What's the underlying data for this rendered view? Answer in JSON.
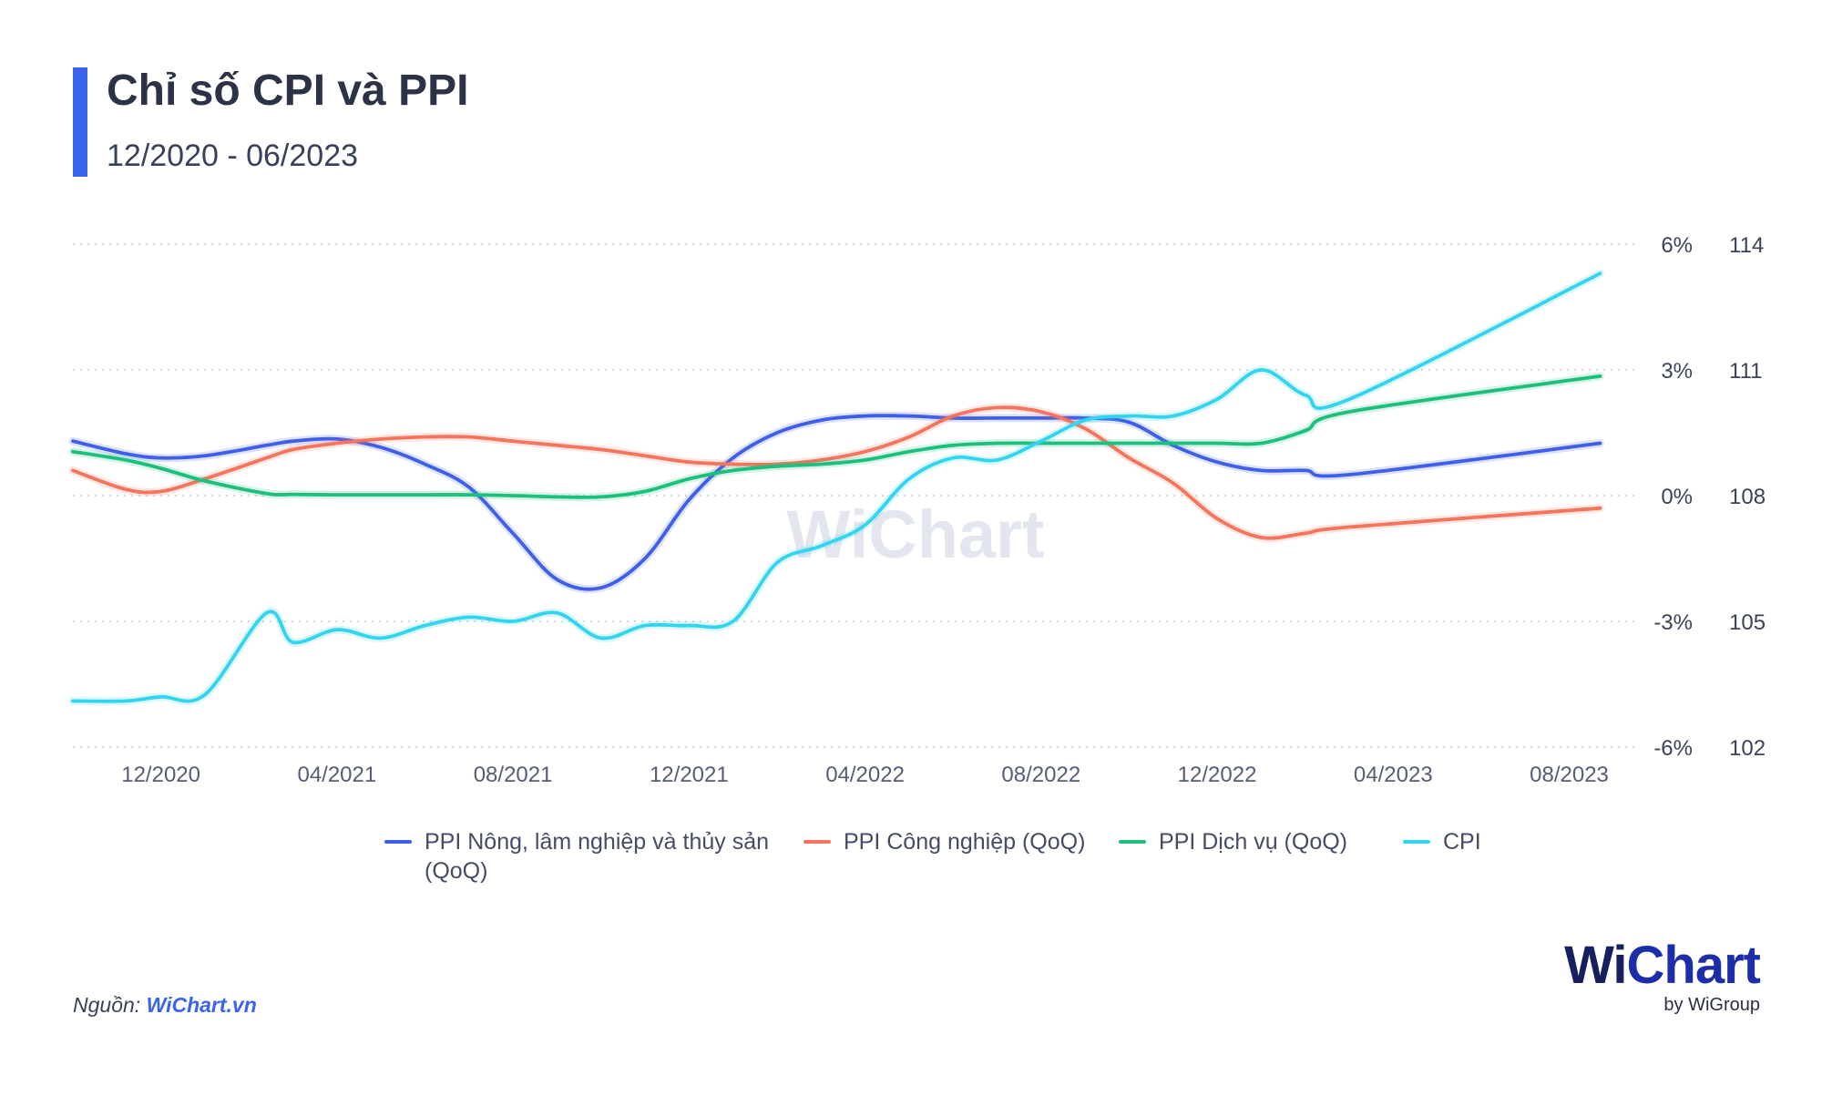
{
  "title": "Chỉ số CPI và PPI",
  "subtitle": "12/2020 - 06/2023",
  "source_label": "Nguồn:",
  "source_name": "WiChart.vn",
  "watermark": "WiChart",
  "brand": {
    "name_prefix": "Wi",
    "name_suffix": "Chart",
    "by": "by WiGroup"
  },
  "colors": {
    "accent": "#3a63f0",
    "agri": "#3f5fe8",
    "industry": "#f4745c",
    "service": "#1dbf7c",
    "cpi": "#33d4ee"
  },
  "chart_data": {
    "type": "line",
    "title": "Chỉ số CPI và PPI",
    "x_labels": [
      "12/2020",
      "04/2021",
      "08/2021",
      "12/2021",
      "04/2022",
      "08/2022",
      "12/2022",
      "04/2023",
      "08/2023"
    ],
    "ylim_left": [
      -6,
      6
    ],
    "yticks_left": [
      "6%",
      "3%",
      "0%",
      "-3%",
      "-6%"
    ],
    "ylim_right": [
      102,
      114
    ],
    "yticks_right": [
      "114",
      "111",
      "108",
      "105",
      "102"
    ],
    "series": [
      {
        "name": "PPI Nông, lâm nghiệp và thủy sản (QoQ)",
        "axis": "left",
        "color": "#3f5fe8",
        "x": [
          10,
          11.2,
          12,
          13,
          14.4,
          15,
          16,
          17,
          18,
          19,
          20,
          21,
          22,
          23,
          24,
          25,
          26,
          27,
          28,
          29,
          30,
          31,
          32,
          33,
          34,
          35,
          36,
          37,
          38,
          39,
          44.7
        ],
        "y": [
          1.3,
          1.0,
          0.9,
          0.95,
          1.2,
          1.3,
          1.35,
          1.15,
          0.75,
          0.2,
          -0.9,
          -2.0,
          -2.2,
          -1.5,
          -0.1,
          0.9,
          1.5,
          1.8,
          1.9,
          1.9,
          1.85,
          1.85,
          1.85,
          1.85,
          1.75,
          1.2,
          0.8,
          0.6,
          0.6,
          0.5,
          1.25
        ]
      },
      {
        "name": "PPI Công nghiệp (QoQ)",
        "axis": "left",
        "color": "#f4745c",
        "x": [
          10,
          11.2,
          12,
          13,
          14.4,
          15,
          16,
          17,
          18,
          19,
          20,
          21,
          22,
          23,
          24,
          25,
          26,
          27,
          28,
          29,
          30,
          31,
          32,
          33,
          34,
          35,
          36,
          37,
          38,
          39,
          44.7
        ],
        "y": [
          0.6,
          0.15,
          0.1,
          0.4,
          0.9,
          1.1,
          1.25,
          1.35,
          1.4,
          1.4,
          1.3,
          1.2,
          1.1,
          0.95,
          0.8,
          0.75,
          0.75,
          0.85,
          1.05,
          1.4,
          1.9,
          2.1,
          2.0,
          1.6,
          0.9,
          0.3,
          -0.55,
          -1.0,
          -0.9,
          -0.75,
          -0.3
        ]
      },
      {
        "name": "PPI Dịch vụ (QoQ)",
        "axis": "left",
        "color": "#1dbf7c",
        "x": [
          10,
          11.2,
          12,
          13,
          14.4,
          15,
          16,
          17,
          18,
          19,
          20,
          21,
          22,
          23,
          24,
          25,
          26,
          27,
          28,
          29,
          30,
          31,
          32,
          33,
          34,
          35,
          36,
          37,
          38,
          39,
          44.7
        ],
        "y": [
          1.05,
          0.85,
          0.65,
          0.35,
          0.05,
          0.03,
          0.02,
          0.02,
          0.02,
          0.02,
          0.0,
          -0.03,
          -0.03,
          0.1,
          0.4,
          0.6,
          0.7,
          0.75,
          0.85,
          1.05,
          1.2,
          1.25,
          1.25,
          1.25,
          1.25,
          1.25,
          1.25,
          1.25,
          1.55,
          2.0,
          2.85
        ]
      },
      {
        "name": "CPI",
        "axis": "right",
        "color": "#33d4ee",
        "x": [
          10,
          11.2,
          12,
          13,
          14.4,
          15,
          16,
          17,
          18,
          19,
          20,
          21,
          22,
          23,
          24,
          25,
          26,
          27,
          28,
          29,
          30,
          31,
          32,
          33,
          34,
          35,
          36,
          37,
          38,
          39,
          44.7
        ],
        "y": [
          103.1,
          103.1,
          103.2,
          103.25,
          105.2,
          104.5,
          104.8,
          104.6,
          104.9,
          105.1,
          105.0,
          105.2,
          104.6,
          104.9,
          104.9,
          105.0,
          106.4,
          106.8,
          107.3,
          108.4,
          108.9,
          108.85,
          109.3,
          109.8,
          109.9,
          109.9,
          110.3,
          111.0,
          110.4,
          110.3,
          113.3
        ]
      }
    ]
  }
}
